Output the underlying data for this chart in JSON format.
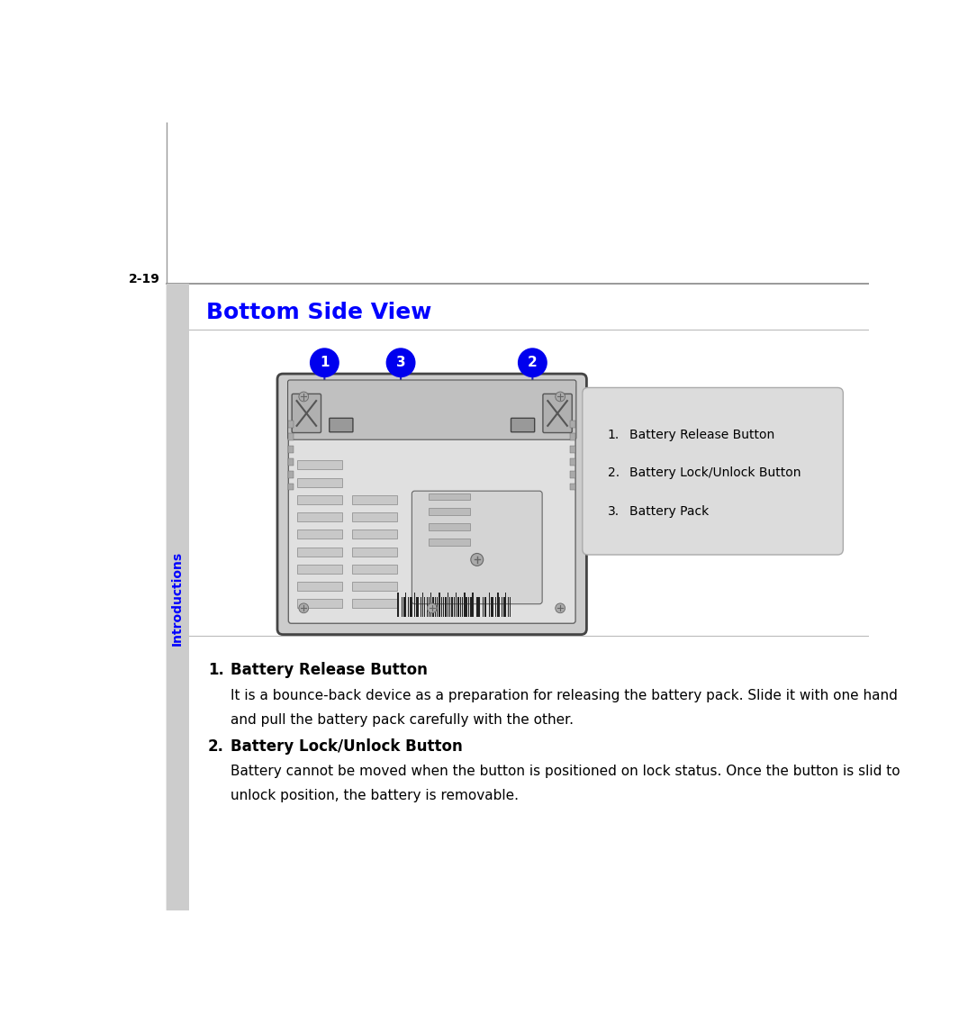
{
  "page_number": "2-19",
  "sidebar_text": "Introductions",
  "section_title": "Bottom Side View",
  "section_title_color": "#0000FF",
  "background_color": "#FFFFFF",
  "sidebar_color": "#CCCCCC",
  "callout_box_bg": "#DCDCDC",
  "callout_items": [
    "Battery Release Button",
    "Battery Lock/Unlock Button",
    "Battery Pack"
  ],
  "callout_numbers": [
    1,
    2,
    3
  ],
  "circle_color": "#0000EE",
  "circle_text_color": "#FFFFFF",
  "arrow_color": "#2222BB",
  "description_items": [
    {
      "number": "1.",
      "title": "Battery Release Button",
      "line1": "It is a bounce-back device as a preparation for releasing the battery pack. Slide it with one hand",
      "line2": "and pull the battery pack carefully with the other."
    },
    {
      "number": "2.",
      "title": "Battery Lock/Unlock Button",
      "line1": "Battery cannot be moved when the button is positioned on lock status. Once the button is slid to",
      "line2": "unlock position, the battery is removable."
    }
  ]
}
